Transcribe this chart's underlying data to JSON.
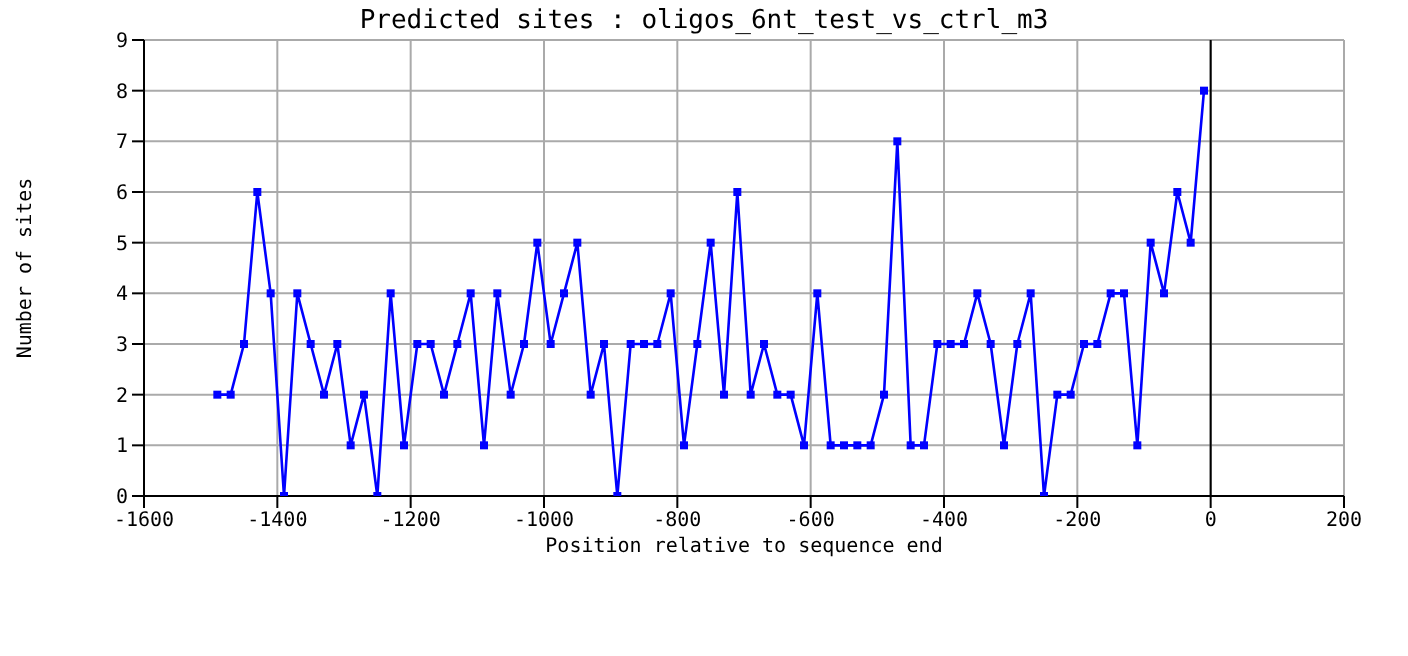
{
  "chart_data": {
    "type": "line",
    "title": "Predicted sites : oligos_6nt_test_vs_ctrl_m3",
    "xlabel": "Position relative to sequence end",
    "ylabel": "Number of sites",
    "x": [
      -1490,
      -1470,
      -1450,
      -1430,
      -1410,
      -1390,
      -1370,
      -1350,
      -1330,
      -1310,
      -1290,
      -1270,
      -1250,
      -1230,
      -1210,
      -1190,
      -1170,
      -1150,
      -1130,
      -1110,
      -1090,
      -1070,
      -1050,
      -1030,
      -1010,
      -990,
      -970,
      -950,
      -930,
      -910,
      -890,
      -870,
      -850,
      -830,
      -810,
      -790,
      -770,
      -750,
      -730,
      -710,
      -690,
      -670,
      -650,
      -630,
      -610,
      -590,
      -570,
      -550,
      -530,
      -510,
      -490,
      -470,
      -450,
      -430,
      -410,
      -390,
      -370,
      -350,
      -330,
      -310,
      -290,
      -270,
      -250,
      -230,
      -210,
      -190,
      -170,
      -150,
      -130,
      -110,
      -90,
      -70,
      -50,
      -30,
      -10
    ],
    "series": [
      {
        "color": "#0000ff",
        "values": [
          2,
          2,
          3,
          6,
          4,
          0,
          4,
          3,
          2,
          3,
          1,
          2,
          0,
          4,
          1,
          3,
          3,
          2,
          3,
          4,
          1,
          4,
          2,
          3,
          5,
          3,
          4,
          5,
          2,
          3,
          0,
          3,
          3,
          3,
          4,
          1,
          3,
          5,
          2,
          6,
          2,
          3,
          2,
          2,
          1,
          4,
          1,
          1,
          1,
          1,
          2,
          7,
          1,
          1,
          3,
          3,
          3,
          4,
          3,
          1,
          3,
          4,
          0,
          2,
          2,
          3,
          3,
          4,
          4,
          1,
          5,
          4,
          6,
          5,
          8
        ]
      }
    ],
    "xlim": [
      -1600,
      200
    ],
    "xticks": [
      -1600,
      -1400,
      -1200,
      -1000,
      -800,
      -600,
      -400,
      -200,
      0,
      200
    ],
    "ylim": [
      0,
      9
    ],
    "yticks": [
      0,
      1,
      2,
      3,
      4,
      5,
      6,
      7,
      8,
      9
    ],
    "grid": true,
    "marker": "square",
    "line_style": "solid",
    "ref_lines": [
      {
        "axis": "x",
        "value": 0,
        "color": "#000000"
      }
    ]
  }
}
